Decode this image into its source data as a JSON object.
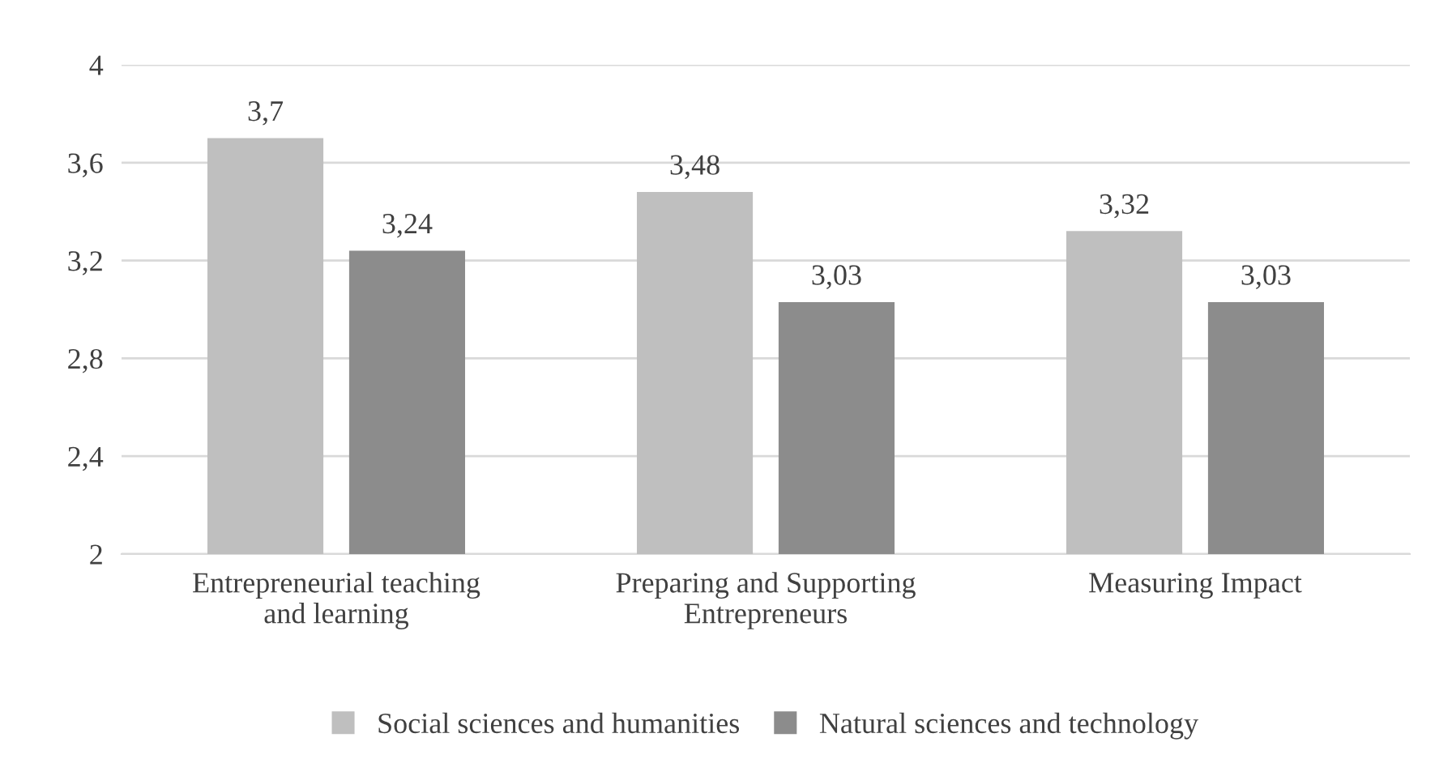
{
  "chart_data": {
    "type": "bar",
    "categories": [
      "Entrepreneurial teaching\nand learning",
      "Preparing and Supporting\nEntrepreneurs",
      "Measuring Impact"
    ],
    "series": [
      {
        "name": "Social sciences and humanities",
        "color": "#bfbfbf",
        "values": [
          3.7,
          3.48,
          3.32
        ],
        "value_labels": [
          "3,7",
          "3,48",
          "3,32"
        ]
      },
      {
        "name": "Natural sciences and technology",
        "color": "#8c8c8c",
        "values": [
          3.24,
          3.03,
          3.03
        ],
        "value_labels": [
          "3,24",
          "3,03",
          "3,03"
        ]
      }
    ],
    "ylim": [
      2,
      4
    ],
    "yticks": [
      2,
      {
        "value": 2.4,
        "label": "2,4"
      },
      {
        "value": 2.8,
        "label": "2,8"
      },
      {
        "value": 3.2,
        "label": "3,2"
      },
      {
        "value": 3.6,
        "label": "3,6"
      },
      4
    ],
    "grid": "y",
    "legend": "bottom"
  }
}
